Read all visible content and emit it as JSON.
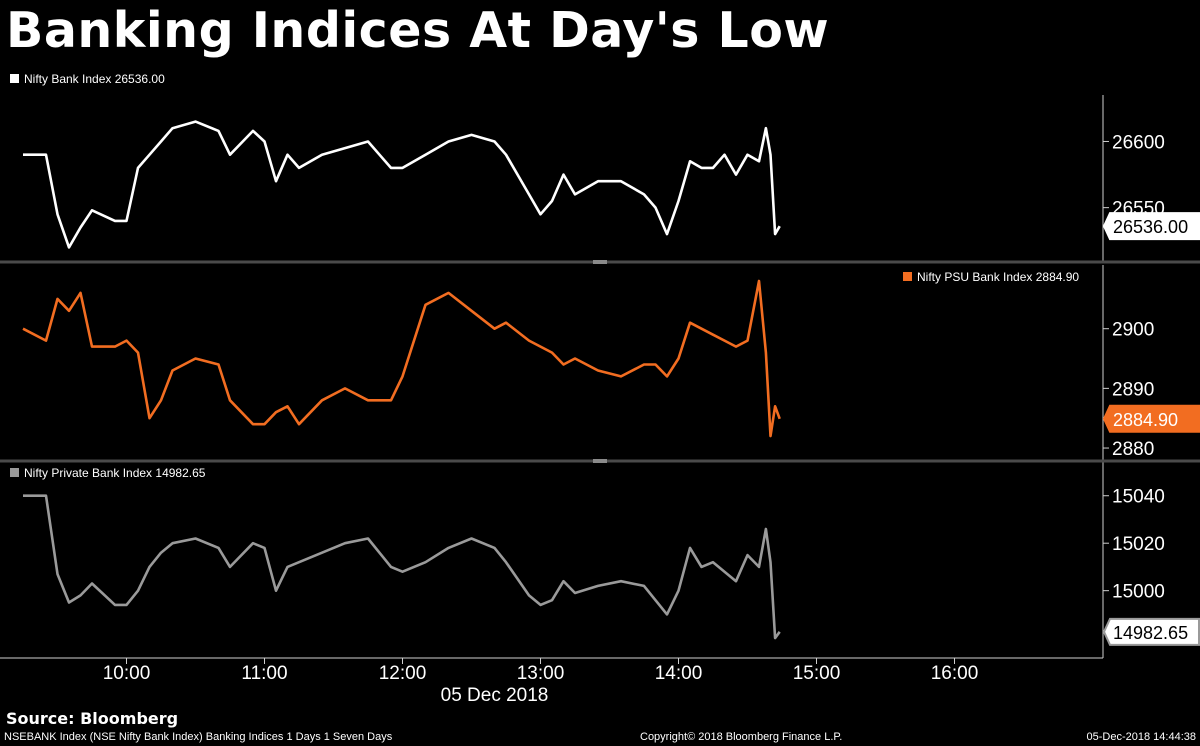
{
  "title": "Banking Indices At Day's Low",
  "source": "Source: Bloomberg",
  "footer": {
    "left": "NSEBANK Index (NSE Nifty Bank Index) Banking Indices 1 Days 1 Seven Days",
    "center": "Copyright© 2018 Bloomberg Finance L.P.",
    "right": "05-Dec-2018 14:44:38"
  },
  "colors": {
    "bank": "#ffffff",
    "psu": "#f26d21",
    "private": "#9a9a9a",
    "background": "#000000",
    "divider": "#4a4a4a"
  },
  "chart_data": [
    {
      "type": "line",
      "series": [
        {
          "name": "Nifty Bank Index",
          "legend": "Nifty Bank Index 26536.00",
          "last_value_label": "26536.00",
          "last": 26536.0,
          "x": [
            "09:15",
            "09:25",
            "09:30",
            "09:35",
            "09:40",
            "09:45",
            "09:55",
            "10:00",
            "10:05",
            "10:10",
            "10:15",
            "10:20",
            "10:30",
            "10:40",
            "10:45",
            "10:55",
            "11:00",
            "11:05",
            "11:10",
            "11:15",
            "11:25",
            "11:35",
            "11:45",
            "11:55",
            "12:00",
            "12:10",
            "12:20",
            "12:30",
            "12:40",
            "12:45",
            "12:55",
            "13:00",
            "13:05",
            "13:10",
            "13:15",
            "13:25",
            "13:35",
            "13:45",
            "13:50",
            "13:55",
            "14:00",
            "14:05",
            "14:10",
            "14:15",
            "14:20",
            "14:25",
            "14:30",
            "14:35",
            "14:38",
            "14:40",
            "14:42",
            "14:44"
          ],
          "y": [
            26590,
            26590,
            26545,
            26520,
            26535,
            26548,
            26540,
            26540,
            26580,
            26590,
            26600,
            26610,
            26615,
            26608,
            26590,
            26608,
            26600,
            26570,
            26590,
            26580,
            26590,
            26595,
            26600,
            26580,
            26580,
            26590,
            26600,
            26605,
            26600,
            26590,
            26560,
            26545,
            26555,
            26575,
            26560,
            26570,
            26570,
            26560,
            26550,
            26530,
            26555,
            26585,
            26580,
            26580,
            26590,
            26575,
            26590,
            26585,
            26610,
            26590,
            26530,
            26536
          ]
        }
      ],
      "yticks": [
        26550,
        26600
      ],
      "ylim": [
        26518,
        26620
      ]
    },
    {
      "type": "line",
      "series": [
        {
          "name": "Nifty PSU Bank Index",
          "legend": "Nifty PSU Bank Index 2884.90",
          "last_value_label": "2884.90",
          "last": 2884.9,
          "x": [
            "09:15",
            "09:25",
            "09:30",
            "09:35",
            "09:40",
            "09:45",
            "09:55",
            "10:00",
            "10:05",
            "10:10",
            "10:15",
            "10:20",
            "10:30",
            "10:40",
            "10:45",
            "10:55",
            "11:00",
            "11:05",
            "11:10",
            "11:15",
            "11:25",
            "11:35",
            "11:45",
            "11:55",
            "12:00",
            "12:10",
            "12:20",
            "12:30",
            "12:40",
            "12:45",
            "12:55",
            "13:00",
            "13:05",
            "13:10",
            "13:15",
            "13:25",
            "13:35",
            "13:45",
            "13:50",
            "13:55",
            "14:00",
            "14:05",
            "14:10",
            "14:15",
            "14:20",
            "14:25",
            "14:30",
            "14:35",
            "14:38",
            "14:40",
            "14:42",
            "14:44"
          ],
          "y": [
            2900,
            2898,
            2905,
            2903,
            2906,
            2897,
            2897,
            2898,
            2896,
            2885,
            2888,
            2893,
            2895,
            2894,
            2888,
            2884,
            2884,
            2886,
            2887,
            2884,
            2888,
            2890,
            2888,
            2888,
            2892,
            2904,
            2906,
            2903,
            2900,
            2901,
            2898,
            2897,
            2896,
            2894,
            2895,
            2893,
            2892,
            2894,
            2894,
            2892,
            2895,
            2901,
            2900,
            2899,
            2898,
            2897,
            2898,
            2908,
            2896,
            2882,
            2887,
            2884.9
          ]
        }
      ],
      "yticks": [
        2880,
        2890,
        2900
      ],
      "ylim": [
        2879,
        2909
      ]
    },
    {
      "type": "line",
      "series": [
        {
          "name": "Nifty Private Bank Index",
          "legend": "Nifty Private Bank Index 14982.65",
          "last_value_label": "14982.65",
          "last": 14982.65,
          "x": [
            "09:15",
            "09:25",
            "09:30",
            "09:35",
            "09:40",
            "09:45",
            "09:55",
            "10:00",
            "10:05",
            "10:10",
            "10:15",
            "10:20",
            "10:30",
            "10:40",
            "10:45",
            "10:55",
            "11:00",
            "11:05",
            "11:10",
            "11:15",
            "11:25",
            "11:35",
            "11:45",
            "11:55",
            "12:00",
            "12:10",
            "12:20",
            "12:30",
            "12:40",
            "12:45",
            "12:55",
            "13:00",
            "13:05",
            "13:10",
            "13:15",
            "13:25",
            "13:35",
            "13:45",
            "13:50",
            "13:55",
            "14:00",
            "14:05",
            "14:10",
            "14:15",
            "14:20",
            "14:25",
            "14:30",
            "14:35",
            "14:38",
            "14:40",
            "14:42",
            "14:44"
          ],
          "y": [
            15040,
            15040,
            15007,
            14995,
            14998,
            15003,
            14994,
            14994,
            15000,
            15010,
            15016,
            15020,
            15022,
            15018,
            15010,
            15020,
            15018,
            15000,
            15010,
            15012,
            15016,
            15020,
            15022,
            15010,
            15008,
            15012,
            15018,
            15022,
            15018,
            15012,
            14998,
            14994,
            14996,
            15004,
            14999,
            15002,
            15004,
            15002,
            14996,
            14990,
            15000,
            15018,
            15010,
            15012,
            15008,
            15004,
            15015,
            15010,
            15026,
            15012,
            14980,
            14982.65
          ]
        }
      ],
      "yticks": [
        15000,
        15020,
        15040
      ],
      "ylim": [
        14975,
        15050
      ]
    }
  ],
  "x_axis": {
    "ticks": [
      "10:00",
      "11:00",
      "12:00",
      "13:00",
      "14:00",
      "15:00",
      "16:00"
    ],
    "date_label": "05 Dec 2018"
  }
}
